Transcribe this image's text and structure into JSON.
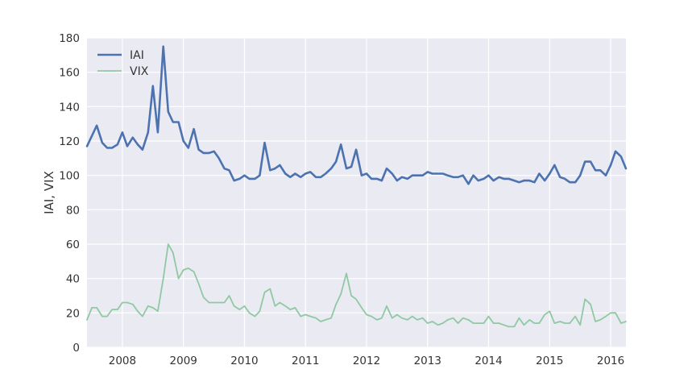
{
  "chart_data": {
    "type": "line",
    "xlabel": "",
    "ylabel": "IAI, VIX",
    "ylim": [
      0,
      180
    ],
    "xlim": [
      2007.42,
      2016.25
    ],
    "yticks": [
      0,
      20,
      40,
      60,
      80,
      100,
      120,
      140,
      160,
      180
    ],
    "xticks": [
      2008,
      2009,
      2010,
      2011,
      2012,
      2013,
      2014,
      2015,
      2016
    ],
    "ytick_labels": [
      "0",
      "20",
      "40",
      "60",
      "80",
      "100",
      "120",
      "140",
      "160",
      "180"
    ],
    "xtick_labels": [
      "2008",
      "2009",
      "2010",
      "2011",
      "2012",
      "2013",
      "2014",
      "2015",
      "2016"
    ],
    "grid": true,
    "legend": "top-left",
    "x": [
      2007.42,
      2007.5,
      2007.58,
      2007.67,
      2007.75,
      2007.83,
      2007.92,
      2008.0,
      2008.08,
      2008.17,
      2008.25,
      2008.33,
      2008.42,
      2008.5,
      2008.58,
      2008.67,
      2008.75,
      2008.83,
      2008.92,
      2009.0,
      2009.08,
      2009.17,
      2009.25,
      2009.33,
      2009.42,
      2009.5,
      2009.58,
      2009.67,
      2009.75,
      2009.83,
      2009.92,
      2010.0,
      2010.08,
      2010.17,
      2010.25,
      2010.33,
      2010.42,
      2010.5,
      2010.58,
      2010.67,
      2010.75,
      2010.83,
      2010.92,
      2011.0,
      2011.08,
      2011.17,
      2011.25,
      2011.33,
      2011.42,
      2011.5,
      2011.58,
      2011.67,
      2011.75,
      2011.83,
      2011.92,
      2012.0,
      2012.08,
      2012.17,
      2012.25,
      2012.33,
      2012.42,
      2012.5,
      2012.58,
      2012.67,
      2012.75,
      2012.83,
      2012.92,
      2013.0,
      2013.08,
      2013.17,
      2013.25,
      2013.33,
      2013.42,
      2013.5,
      2013.58,
      2013.67,
      2013.75,
      2013.83,
      2013.92,
      2014.0,
      2014.08,
      2014.17,
      2014.25,
      2014.33,
      2014.42,
      2014.5,
      2014.58,
      2014.67,
      2014.75,
      2014.83,
      2014.92,
      2015.0,
      2015.08,
      2015.17,
      2015.25,
      2015.33,
      2015.42,
      2015.5,
      2015.58,
      2015.67,
      2015.75,
      2015.83,
      2015.92,
      2016.0,
      2016.08,
      2016.17,
      2016.25
    ],
    "series": [
      {
        "name": "IAI",
        "color": "#4c72b0",
        "width": 2.6,
        "values": [
          117,
          123,
          129,
          119,
          116,
          116,
          118,
          125,
          117,
          122,
          118,
          115,
          125,
          152,
          125,
          175,
          137,
          131,
          131,
          120,
          116,
          127,
          115,
          113,
          113,
          114,
          110,
          104,
          103,
          97,
          98,
          100,
          98,
          98,
          100,
          119,
          103,
          104,
          106,
          101,
          99,
          101,
          99,
          101,
          102,
          99,
          99,
          101,
          104,
          108,
          118,
          104,
          105,
          115,
          100,
          101,
          98,
          98,
          97,
          104,
          101,
          97,
          99,
          98,
          100,
          100,
          100,
          102,
          101,
          101,
          101,
          100,
          99,
          99,
          100,
          95,
          100,
          97,
          98,
          100,
          97,
          99,
          98,
          98,
          97,
          96,
          97,
          97,
          96,
          101,
          97,
          101,
          106,
          99,
          98,
          96,
          96,
          100,
          108,
          108,
          103,
          103,
          100,
          106,
          114,
          111,
          104
        ]
      },
      {
        "name": "VIX",
        "color": "#8fc9a3",
        "width": 1.8,
        "values": [
          16,
          23,
          23,
          18,
          18,
          22,
          22,
          26,
          26,
          25,
          21,
          18,
          24,
          23,
          21,
          40,
          60,
          55,
          40,
          45,
          46,
          44,
          37,
          29,
          26,
          26,
          26,
          26,
          30,
          24,
          22,
          24,
          20,
          18,
          21,
          32,
          34,
          24,
          26,
          24,
          22,
          23,
          18,
          19,
          18,
          17,
          15,
          16,
          17,
          25,
          31,
          43,
          30,
          28,
          23,
          19,
          18,
          16,
          17,
          24,
          17,
          19,
          17,
          16,
          18,
          16,
          17,
          14,
          15,
          13,
          14,
          16,
          17,
          14,
          17,
          16,
          14,
          14,
          14,
          18,
          14,
          14,
          13,
          12,
          12,
          17,
          13,
          16,
          14,
          14,
          19,
          21,
          14,
          15,
          14,
          14,
          18,
          13,
          28,
          25,
          15,
          16,
          18,
          20,
          20,
          14,
          15
        ]
      }
    ]
  }
}
